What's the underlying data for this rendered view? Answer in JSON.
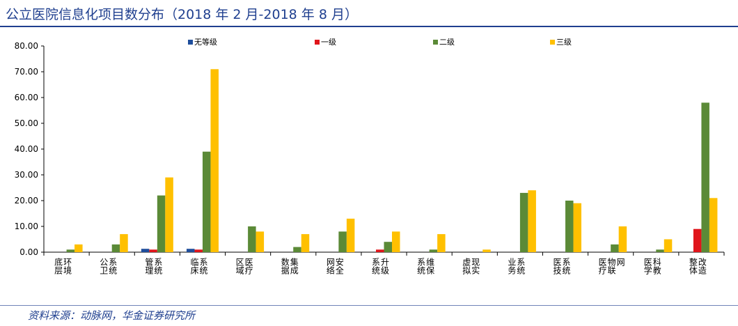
{
  "page": {
    "title": "公立医院信息化项目数分布（2018 年 2 月-2018 年 8 月）",
    "source": "资料来源：动脉网，华金证券研究所"
  },
  "chart_data": {
    "type": "bar",
    "categories": [
      "底层环境",
      "公卫系统",
      "管理系统",
      "临床系统",
      "区域医疗",
      "数据集成",
      "网络安全",
      "系统升级",
      "系统维保",
      "虚拟现实",
      "业务系统",
      "医技系统",
      "医疗物联网",
      "医学科教",
      "整体改造"
    ],
    "series": [
      {
        "name": "无等级",
        "color": "#1f4e9c",
        "values": [
          0,
          0,
          1.3,
          1.3,
          0,
          0,
          0,
          0,
          0,
          0,
          0,
          0,
          0,
          0,
          0
        ]
      },
      {
        "name": "一级",
        "color": "#e0151b",
        "values": [
          0,
          0,
          1,
          1,
          0,
          0,
          0,
          1,
          0,
          0,
          0,
          0,
          0,
          0,
          9
        ]
      },
      {
        "name": "二级",
        "color": "#5b8a37",
        "values": [
          1,
          3,
          22,
          39,
          10,
          2,
          8,
          4,
          1,
          0,
          23,
          20,
          3,
          1,
          58
        ]
      },
      {
        "name": "三级",
        "color": "#ffc000",
        "values": [
          3,
          7,
          29,
          71,
          8,
          7,
          13,
          8,
          7,
          1,
          24,
          19,
          10,
          5,
          21
        ]
      }
    ],
    "yticks": [
      "0.00",
      "10.00",
      "20.00",
      "30.00",
      "40.00",
      "50.00",
      "60.00",
      "70.00",
      "80.00"
    ],
    "ylim": [
      0,
      80
    ],
    "legend_position": "top",
    "grid": false
  }
}
